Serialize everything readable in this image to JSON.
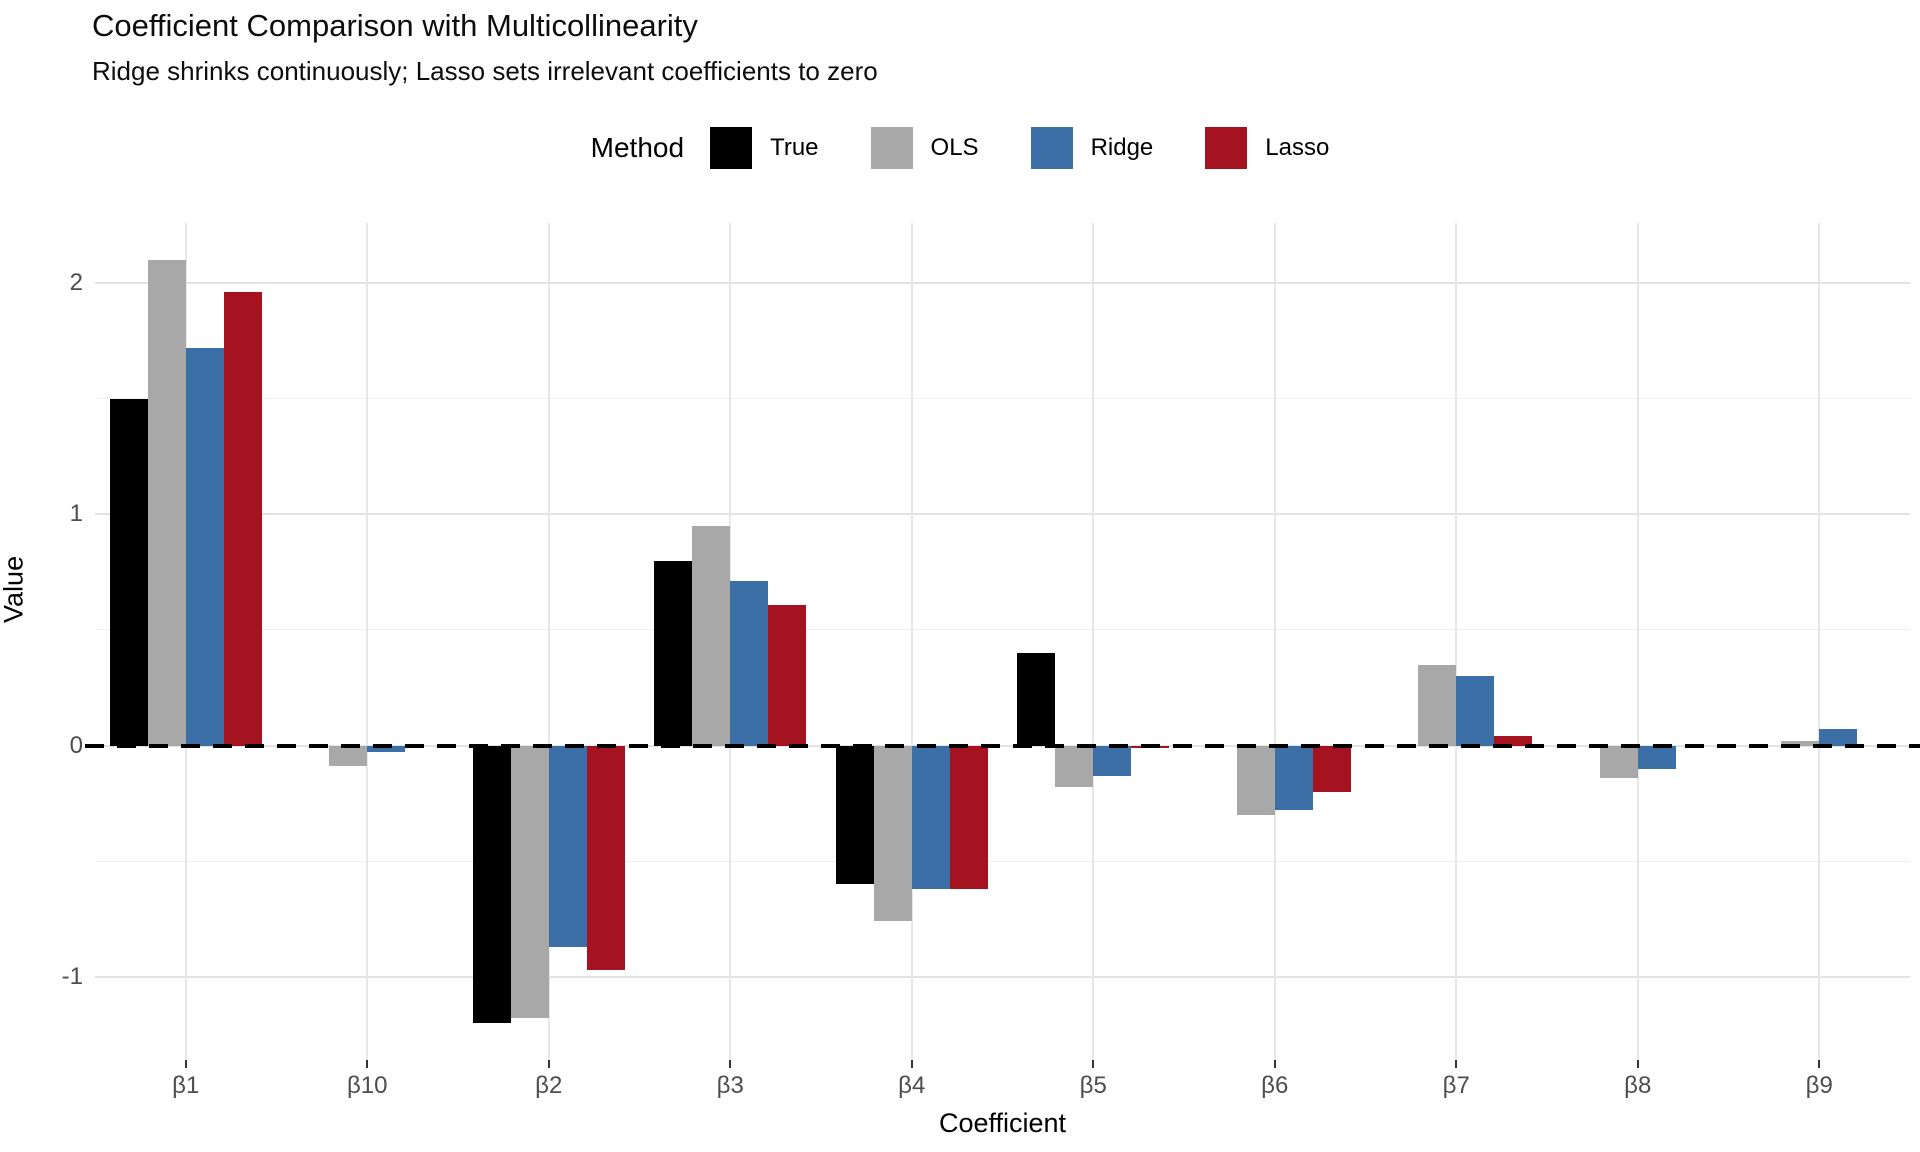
{
  "chart_data": {
    "type": "bar",
    "title": "Coefficient Comparison with Multicollinearity",
    "subtitle": "Ridge shrinks continuously; Lasso sets irrelevant coefficients to zero",
    "xlabel": "Coefficient",
    "ylabel": "Value",
    "legend_title": "Method",
    "legend_position": "top-center",
    "grid": "major and minor horizontal, major vertical at group centers",
    "zero_reference_line": "dashed black at y=0",
    "categories": [
      "β1",
      "β10",
      "β2",
      "β3",
      "β4",
      "β5",
      "β6",
      "β7",
      "β8",
      "β9"
    ],
    "series": [
      {
        "name": "True",
        "color": "#000000",
        "values": [
          1.5,
          0,
          -1.2,
          0.8,
          -0.6,
          0.4,
          0,
          0,
          0,
          0
        ]
      },
      {
        "name": "OLS",
        "color": "#a8a8a8",
        "values": [
          2.1,
          -0.09,
          -1.18,
          0.95,
          -0.76,
          -0.18,
          -0.3,
          0.35,
          -0.14,
          0.02
        ]
      },
      {
        "name": "Ridge",
        "color": "#3b6fa5",
        "values": [
          1.72,
          -0.03,
          -0.87,
          0.71,
          -0.62,
          -0.13,
          -0.28,
          0.3,
          -0.1,
          0.07
        ]
      },
      {
        "name": "Lasso",
        "color": "#a51220",
        "values": [
          1.96,
          0,
          -0.97,
          0.61,
          -0.62,
          -0.01,
          -0.2,
          0.04,
          0,
          0
        ]
      }
    ],
    "ylim": [
      -1.36,
      2.26
    ],
    "y_major_gridlines": [
      -1,
      0,
      1,
      2
    ],
    "y_minor_gridlines": [
      -0.5,
      0.5,
      1.5
    ],
    "y_tick_labels": [
      "2",
      "1",
      "0",
      "-1"
    ],
    "y_tick_values": [
      2,
      1,
      0,
      -1
    ]
  }
}
